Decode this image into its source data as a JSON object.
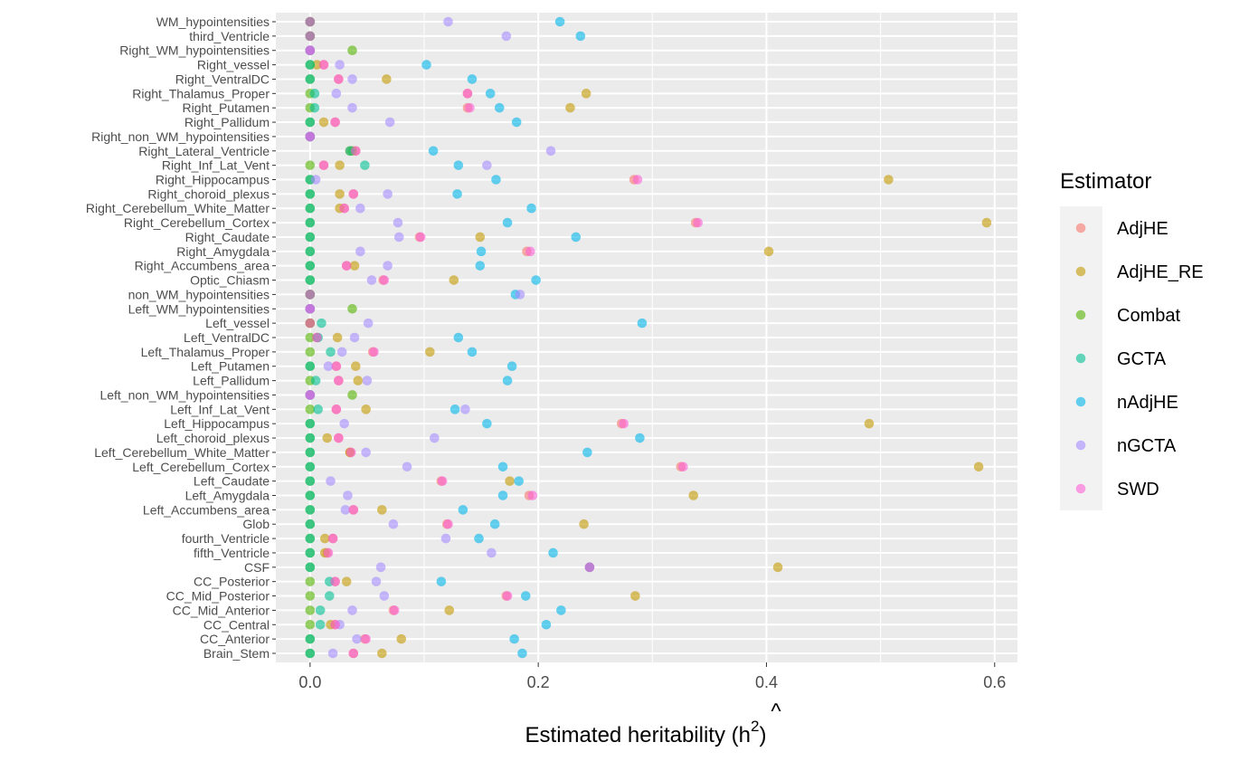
{
  "chart_data": {
    "type": "scatter",
    "xlabel_main": "Estimated heritability (h",
    "xlabel_hat": "^",
    "xlabel_sup": "2",
    "xlabel_close": ")",
    "xlim": [
      -0.03,
      0.62
    ],
    "x_ticks": [
      0.0,
      0.2,
      0.4,
      0.6
    ],
    "x_tick_labels": [
      "0.0",
      "0.2",
      "0.4",
      "0.6"
    ],
    "grid": true,
    "legend": {
      "title": "Estimator",
      "placement": "right",
      "entries": [
        {
          "name": "AdjHE",
          "color": "#F8766D"
        },
        {
          "name": "AdjHE_RE",
          "color": "#C49A00"
        },
        {
          "name": "Combat",
          "color": "#53B400"
        },
        {
          "name": "GCTA",
          "color": "#00C094"
        },
        {
          "name": "nAdjHE",
          "color": "#00B6EB"
        },
        {
          "name": "nGCTA",
          "color": "#A58AFF"
        },
        {
          "name": "SWD",
          "color": "#FB61D7"
        }
      ]
    },
    "categories": [
      "WM_hypointensities",
      "third_Ventricle",
      "Right_WM_hypointensities",
      "Right_vessel",
      "Right_VentralDC",
      "Right_Thalamus_Proper",
      "Right_Putamen",
      "Right_Pallidum",
      "Right_non_WM_hypointensities",
      "Right_Lateral_Ventricle",
      "Right_Inf_Lat_Vent",
      "Right_Hippocampus",
      "Right_choroid_plexus",
      "Right_Cerebellum_White_Matter",
      "Right_Cerebellum_Cortex",
      "Right_Caudate",
      "Right_Amygdala",
      "Right_Accumbens_area",
      "Optic_Chiasm",
      "non_WM_hypointensities",
      "Left_WM_hypointensities",
      "Left_vessel",
      "Left_VentralDC",
      "Left_Thalamus_Proper",
      "Left_Putamen",
      "Left_Pallidum",
      "Left_non_WM_hypointensities",
      "Left_Inf_Lat_Vent",
      "Left_Hippocampus",
      "Left_choroid_plexus",
      "Left_Cerebellum_White_Matter",
      "Left_Cerebellum_Cortex",
      "Left_Caudate",
      "Left_Amygdala",
      "Left_Accumbens_area",
      "Glob",
      "fourth_Ventricle",
      "fifth_Ventricle",
      "CSF",
      "CC_Posterior",
      "CC_Mid_Posterior",
      "CC_Mid_Anterior",
      "CC_Central",
      "CC_Anterior",
      "Brain_Stem"
    ],
    "series": [
      {
        "name": "AdjHE",
        "color": "#F8766D",
        "values": [
          0,
          0,
          0,
          0.012,
          0.025,
          0.138,
          0.138,
          0.022,
          0,
          0.04,
          0.012,
          0.284,
          0.038,
          0.03,
          0.338,
          0.096,
          0.19,
          0.032,
          0.064,
          0,
          0,
          0,
          0.006,
          0.055,
          0.023,
          0.025,
          0,
          0.023,
          0.273,
          0.025,
          0.035,
          0.325,
          0.115,
          0.192,
          0.038,
          0.12,
          0.02,
          0.015,
          0.245,
          0.022,
          0.172,
          0.073,
          0.022,
          0.048,
          0.038
        ]
      },
      {
        "name": "AdjHE_RE",
        "color": "#C49A00",
        "values": [
          0,
          0,
          0,
          0.006,
          0.067,
          0.242,
          0.228,
          0.012,
          0,
          0.035,
          0.026,
          0.507,
          0.026,
          0.026,
          0.593,
          0.149,
          0.402,
          0.039,
          0.126,
          0,
          0,
          0,
          0.024,
          0.105,
          0.04,
          0.042,
          0,
          0.049,
          0.49,
          0.015,
          0.035,
          0.586,
          0.175,
          0.336,
          0.063,
          0.24,
          0.013,
          0.013,
          0.41,
          0.032,
          0.285,
          0.122,
          0.018,
          0.08,
          0.063
        ]
      },
      {
        "name": "Combat",
        "color": "#53B400",
        "values": [
          0,
          0,
          0.037,
          0,
          0,
          0,
          0,
          0,
          0,
          0.037,
          0,
          0,
          0,
          0,
          0,
          0,
          0,
          0,
          0,
          0,
          0.037,
          0,
          0,
          0,
          0,
          0,
          0.037,
          0,
          0,
          0,
          0,
          0,
          0,
          0,
          0,
          0,
          0,
          0,
          0,
          0,
          0,
          0,
          0,
          0,
          0
        ]
      },
      {
        "name": "GCTA",
        "color": "#00C094",
        "values": [
          0,
          0,
          0,
          0,
          0,
          0.004,
          0.004,
          0,
          0,
          0.035,
          0.048,
          0,
          0,
          0,
          0,
          0,
          0,
          0,
          0,
          0,
          0,
          0.01,
          0.007,
          0.018,
          0,
          0.005,
          0,
          0.007,
          0,
          0,
          0,
          0,
          0,
          0,
          0,
          0,
          0,
          0,
          0,
          0.017,
          0.017,
          0.009,
          0.009,
          0,
          0
        ]
      },
      {
        "name": "nAdjHE",
        "color": "#00B6EB",
        "values": [
          0.219,
          0.237,
          0,
          0.102,
          0.142,
          0.158,
          0.166,
          0.181,
          0,
          0.108,
          0.13,
          0.163,
          0.129,
          0.194,
          0.173,
          0.233,
          0.15,
          0.149,
          0.198,
          0.18,
          0,
          0.291,
          0.13,
          0.142,
          0.177,
          0.173,
          0,
          0.127,
          0.155,
          0.289,
          0.243,
          0.169,
          0.183,
          0.169,
          0.134,
          0.162,
          0.148,
          0.213,
          0.245,
          0.115,
          0.189,
          0.22,
          0.207,
          0.179,
          0.186
        ]
      },
      {
        "name": "nGCTA",
        "color": "#A58AFF",
        "values": [
          0.121,
          0.172,
          0,
          0.026,
          0.037,
          0.023,
          0.037,
          0.07,
          0,
          0.211,
          0.155,
          0.005,
          0.068,
          0.044,
          0.077,
          0.078,
          0.044,
          0.068,
          0.054,
          0.184,
          0,
          0.051,
          0.039,
          0.028,
          0.016,
          0.05,
          0,
          0.136,
          0.03,
          0.109,
          0.049,
          0.085,
          0.018,
          0.033,
          0.031,
          0.073,
          0.119,
          0.159,
          0.062,
          0.058,
          0.065,
          0.037,
          0.026,
          0.041,
          0.02
        ]
      },
      {
        "name": "SWD",
        "color": "#FB61D7",
        "values": [
          0,
          0,
          0,
          0.012,
          0.025,
          0.138,
          0.14,
          0.022,
          0,
          0.04,
          0.012,
          0.287,
          0.038,
          0.03,
          0.34,
          0.097,
          0.193,
          0.032,
          0.065,
          0,
          0,
          0,
          0.006,
          0.056,
          0.023,
          0.025,
          0,
          0.023,
          0.275,
          0.025,
          0.036,
          0.327,
          0.116,
          0.195,
          0.038,
          0.121,
          0.02,
          0.016,
          0.245,
          0.022,
          0.173,
          0.074,
          0.022,
          0.049,
          0.038
        ]
      }
    ]
  }
}
